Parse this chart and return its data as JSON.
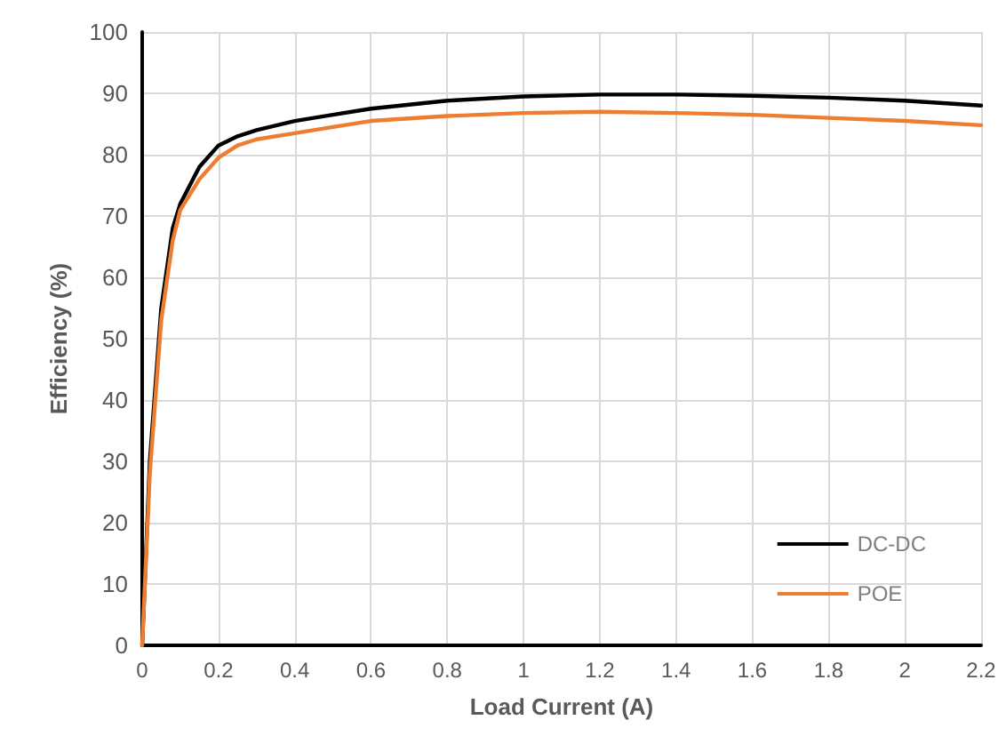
{
  "chart_data": {
    "type": "line",
    "xlabel": "Load Current (A)",
    "ylabel": "Efficiency (%)",
    "xlim": [
      0,
      2.2
    ],
    "xticks": [
      0,
      0.2,
      0.4,
      0.6,
      0.8,
      1,
      1.2,
      1.4,
      1.6,
      1.8,
      2,
      2.2
    ],
    "ylim": [
      0,
      100
    ],
    "yticks": [
      0,
      10,
      20,
      30,
      40,
      50,
      60,
      70,
      80,
      90,
      100
    ],
    "grid": true,
    "legend": "bottom right",
    "marker": "none",
    "line_style": "solid",
    "x": [
      0,
      0.02,
      0.05,
      0.08,
      0.1,
      0.15,
      0.2,
      0.25,
      0.3,
      0.4,
      0.5,
      0.6,
      0.8,
      1.0,
      1.2,
      1.4,
      1.6,
      1.8,
      2.0,
      2.2
    ],
    "series": [
      {
        "name": "DC-DC",
        "color": "#000000",
        "values": [
          0,
          30,
          55,
          68,
          72,
          78,
          81.5,
          83,
          84,
          85.5,
          86.5,
          87.5,
          88.8,
          89.5,
          89.8,
          89.8,
          89.6,
          89.3,
          88.8,
          88
        ]
      },
      {
        "name": "POE",
        "color": "#ed7d31",
        "values": [
          0,
          28,
          53,
          66,
          71,
          76,
          79.5,
          81.5,
          82.5,
          83.5,
          84.5,
          85.5,
          86.3,
          86.8,
          87,
          86.8,
          86.5,
          86,
          85.5,
          84.8
        ]
      }
    ]
  }
}
